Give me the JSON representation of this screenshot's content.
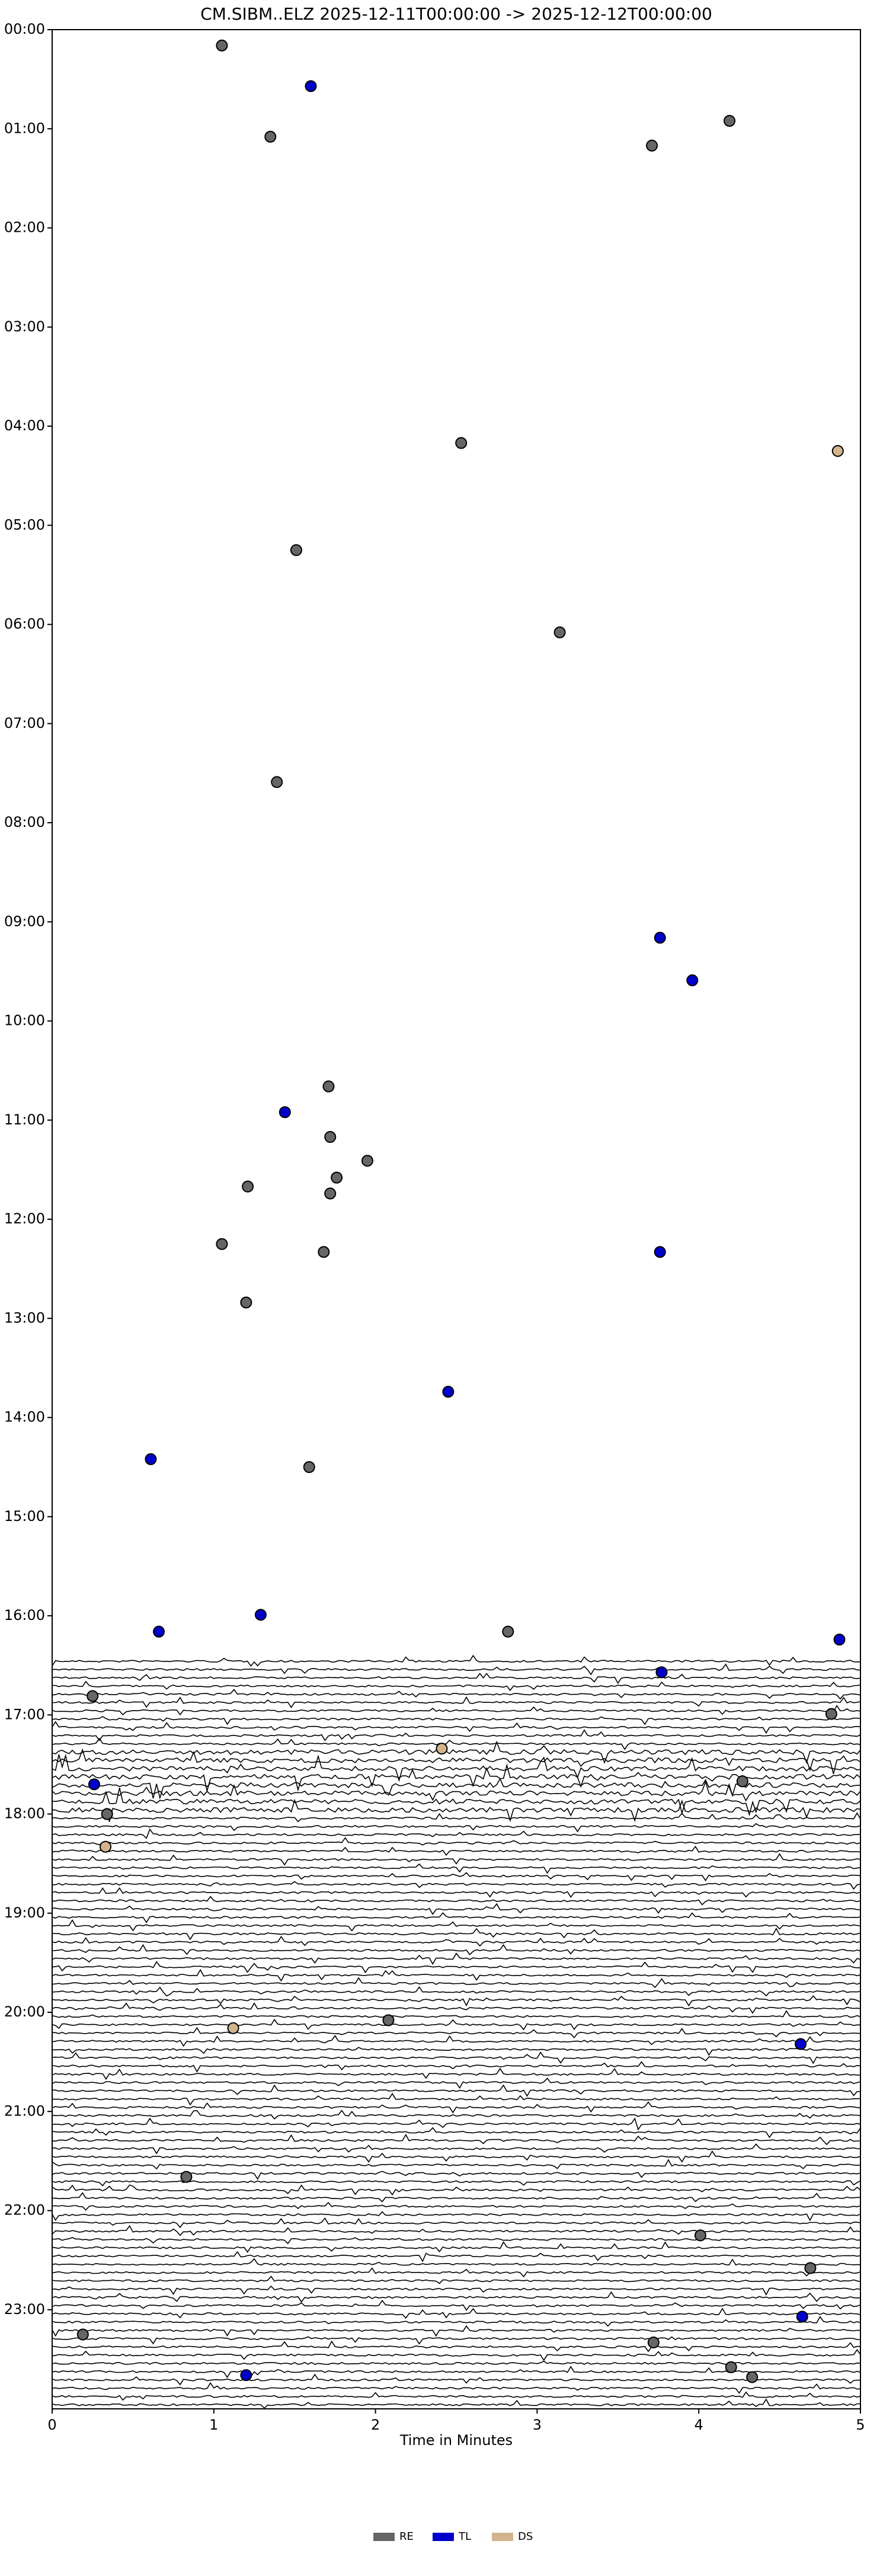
{
  "chart_data": {
    "type": "scatter",
    "title": "CM.SIBM..ELZ  2025-12-11T00:00:00 -> 2025-12-12T00:00:00",
    "x_label": "Time in Minutes",
    "xlim": [
      0,
      5
    ],
    "xticks": [
      0,
      1,
      2,
      3,
      4,
      5
    ],
    "ylim": [
      0,
      24
    ],
    "y_inverted": true,
    "yticks": [
      {
        "value": 0,
        "label": "00:00"
      },
      {
        "value": 1,
        "label": "01:00"
      },
      {
        "value": 2,
        "label": "02:00"
      },
      {
        "value": 3,
        "label": "03:00"
      },
      {
        "value": 4,
        "label": "04:00"
      },
      {
        "value": 5,
        "label": "05:00"
      },
      {
        "value": 6,
        "label": "06:00"
      },
      {
        "value": 7,
        "label": "07:00"
      },
      {
        "value": 8,
        "label": "08:00"
      },
      {
        "value": 9,
        "label": "09:00"
      },
      {
        "value": 10,
        "label": "10:00"
      },
      {
        "value": 11,
        "label": "11:00"
      },
      {
        "value": 12,
        "label": "12:00"
      },
      {
        "value": 13,
        "label": "13:00"
      },
      {
        "value": 14,
        "label": "14:00"
      },
      {
        "value": 15,
        "label": "15:00"
      },
      {
        "value": 16,
        "label": "16:00"
      },
      {
        "value": 17,
        "label": "17:00"
      },
      {
        "value": 18,
        "label": "18:00"
      },
      {
        "value": 19,
        "label": "19:00"
      },
      {
        "value": 20,
        "label": "20:00"
      },
      {
        "value": 21,
        "label": "21:00"
      },
      {
        "value": 22,
        "label": "22:00"
      },
      {
        "value": 23,
        "label": "23:00"
      }
    ],
    "legend": "bottom",
    "series": [
      {
        "name": "RE",
        "color": "#666666",
        "x": [
          1.05,
          1.35,
          4.19,
          3.71,
          2.53,
          1.51,
          3.14,
          1.39,
          1.71,
          1.72,
          1.95,
          1.76,
          1.21,
          1.72,
          1.05,
          1.68,
          1.2,
          1.59,
          2.82,
          0.25,
          4.82,
          0.34,
          4.27,
          2.08,
          0.83,
          4.01,
          4.69,
          0.19,
          3.72,
          4.2,
          4.33
        ],
        "values": [
          0.16,
          1.08,
          0.92,
          1.17,
          4.17,
          5.25,
          6.08,
          7.59,
          10.66,
          11.17,
          11.41,
          11.58,
          11.67,
          11.74,
          12.25,
          12.33,
          12.84,
          14.5,
          16.16,
          16.81,
          16.99,
          18.0,
          17.67,
          20.08,
          21.66,
          22.25,
          22.58,
          23.25,
          23.33,
          23.58,
          23.68
        ]
      },
      {
        "name": "TL",
        "color": "#0000cc",
        "x": [
          1.6,
          3.76,
          3.96,
          1.44,
          3.76,
          2.45,
          0.61,
          0.66,
          1.29,
          4.87,
          3.77,
          0.26,
          4.63,
          4.64,
          1.2
        ],
        "values": [
          0.57,
          9.16,
          9.59,
          10.92,
          12.33,
          13.74,
          14.42,
          16.16,
          15.99,
          16.24,
          16.57,
          17.7,
          20.32,
          23.07,
          23.66
        ]
      },
      {
        "name": "DS",
        "color": "#d2b48c",
        "x": [
          4.86,
          2.41,
          0.33,
          1.12
        ],
        "values": [
          4.25,
          17.34,
          18.33,
          20.16
        ]
      }
    ]
  }
}
